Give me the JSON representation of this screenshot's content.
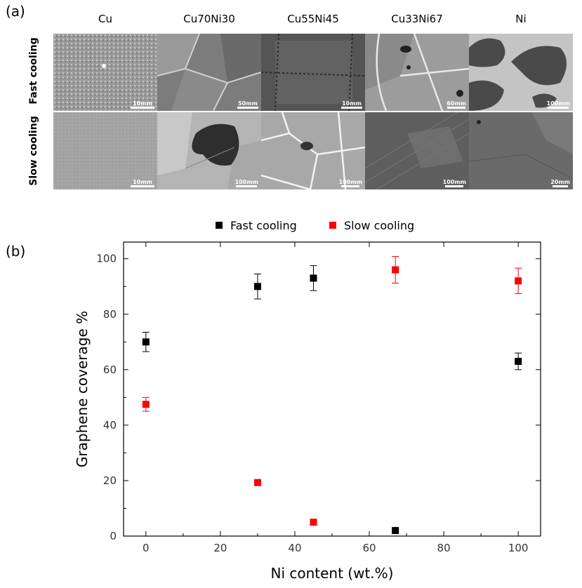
{
  "panel_a": {
    "label": "(a)",
    "columns": [
      "Cu",
      "Cu70Ni30",
      "Cu55Ni45",
      "Cu33Ni67",
      "Ni"
    ],
    "rows": [
      "Fast cooling",
      "Slow cooling"
    ],
    "scalebars": [
      [
        "10mm",
        "50mm",
        "10mm",
        "60mm",
        "100mm"
      ],
      [
        "10mm",
        "100mm",
        "100mm",
        "100mm",
        "20mm"
      ]
    ]
  },
  "panel_b": {
    "label": "(b)"
  },
  "chart_data": {
    "type": "scatter",
    "xlabel": "Ni content (wt.%)",
    "ylabel": "Graphene coverage %",
    "xlim": [
      -6,
      106
    ],
    "ylim": [
      0,
      106
    ],
    "xticks": [
      0,
      20,
      40,
      60,
      80,
      100
    ],
    "yticks": [
      0,
      20,
      40,
      60,
      80,
      100
    ],
    "legend_position": "top",
    "series": [
      {
        "name": "Fast cooling",
        "color": "#000000",
        "points": [
          {
            "x": 0,
            "y": 70,
            "err": 3.5
          },
          {
            "x": 30,
            "y": 90,
            "err": 4.5
          },
          {
            "x": 45,
            "y": 93,
            "err": 4.5
          },
          {
            "x": 67,
            "y": 2,
            "err": 0
          },
          {
            "x": 100,
            "y": 63,
            "err": 3
          }
        ]
      },
      {
        "name": "Slow cooling",
        "color": "#ff0000",
        "points": [
          {
            "x": 0,
            "y": 47.5,
            "err": 2.5
          },
          {
            "x": 30,
            "y": 19.3,
            "err": 0
          },
          {
            "x": 45,
            "y": 5,
            "err": 0
          },
          {
            "x": 67,
            "y": 96,
            "err": 4.8
          },
          {
            "x": 100,
            "y": 92,
            "err": 4.6
          }
        ]
      }
    ]
  }
}
